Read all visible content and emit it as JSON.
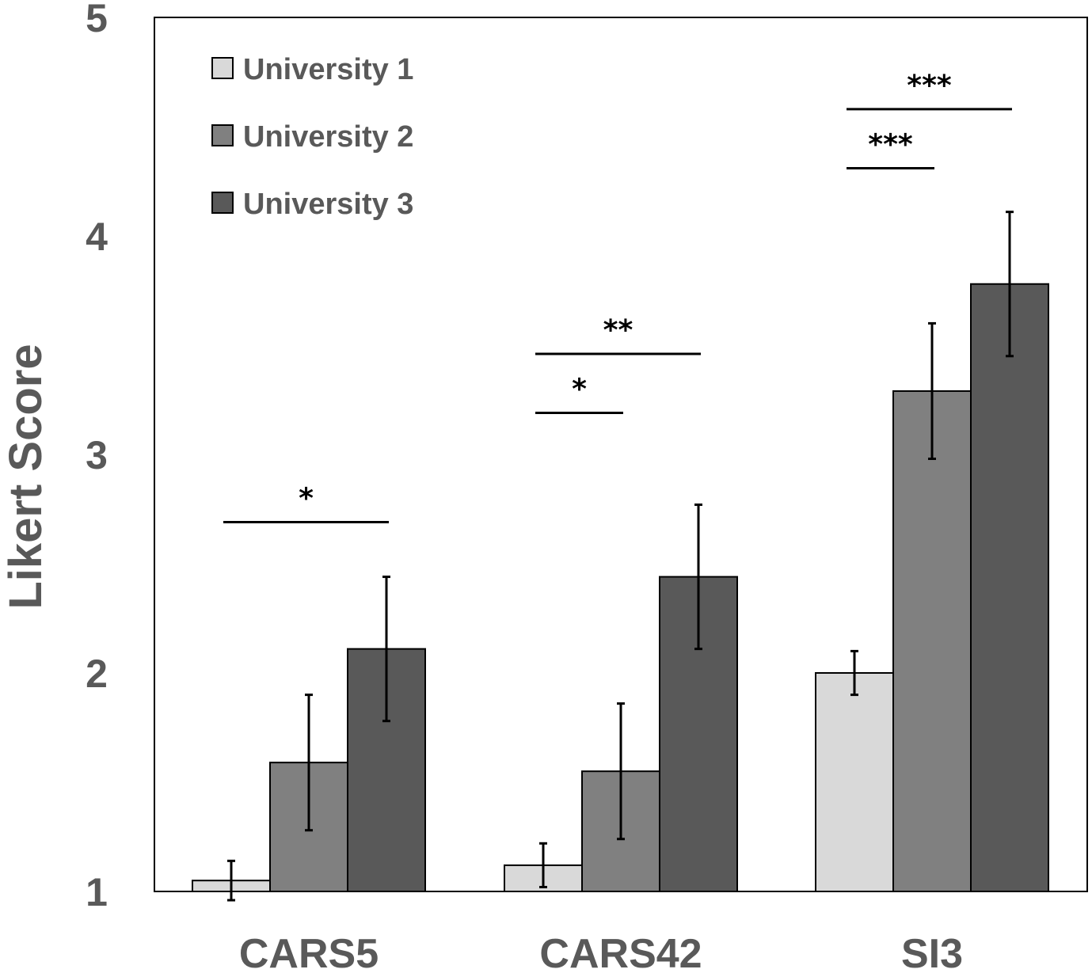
{
  "chart_data": {
    "type": "bar",
    "title": "",
    "xlabel": "",
    "ylabel": "Likert Score",
    "ylim": [
      1,
      5
    ],
    "yticks": [
      "1",
      "2",
      "3",
      "4",
      "5"
    ],
    "categories": [
      "CARS5",
      "CARS42",
      "SI3"
    ],
    "series": [
      {
        "name": "University 1",
        "color": "#d9d9d9",
        "values": [
          1.05,
          1.12,
          2.0
        ],
        "errors": [
          0.09,
          0.1,
          0.1
        ]
      },
      {
        "name": "University 2",
        "color": "#808080",
        "values": [
          1.59,
          1.55,
          3.29
        ],
        "errors": [
          0.31,
          0.31,
          0.31
        ]
      },
      {
        "name": "University 3",
        "color": "#595959",
        "values": [
          2.11,
          2.44,
          3.78
        ],
        "errors": [
          0.33,
          0.33,
          0.33
        ]
      }
    ],
    "significance": [
      {
        "category": "CARS5",
        "from_series": 0,
        "to_series": 2,
        "level": 2.69,
        "label": "*"
      },
      {
        "category": "CARS42",
        "from_series": 0,
        "to_series": 1,
        "level": 3.19,
        "label": "*"
      },
      {
        "category": "CARS42",
        "from_series": 0,
        "to_series": 2,
        "level": 3.46,
        "label": "**"
      },
      {
        "category": "SI3",
        "from_series": 0,
        "to_series": 1,
        "level": 4.31,
        "label": "***"
      },
      {
        "category": "SI3",
        "from_series": 0,
        "to_series": 2,
        "level": 4.58,
        "label": "***"
      }
    ],
    "legend_position": "top-left"
  }
}
